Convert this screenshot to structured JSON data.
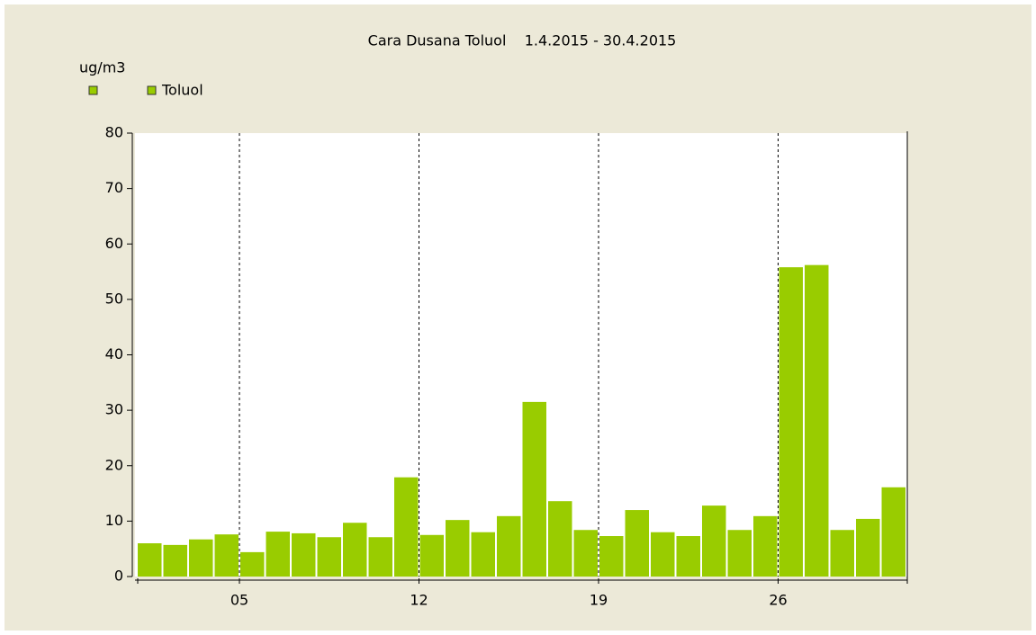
{
  "chart_data": {
    "type": "bar",
    "title": "Cara Dusana Toluol    1.4.2015 - 30.4.2015",
    "y_label": "ug/m3",
    "categories": [
      null,
      null,
      null,
      null,
      "05",
      null,
      null,
      null,
      null,
      null,
      null,
      "12",
      null,
      null,
      null,
      null,
      null,
      null,
      "19",
      null,
      null,
      null,
      null,
      null,
      null,
      "26",
      null,
      null,
      null,
      null
    ],
    "series": [
      {
        "name": "Toluol",
        "color": "#99cc00",
        "values": [
          6.0,
          5.7,
          6.7,
          7.6,
          4.4,
          8.1,
          7.8,
          7.1,
          9.7,
          7.1,
          17.9,
          7.5,
          10.2,
          8.0,
          10.9,
          31.5,
          13.6,
          8.4,
          7.3,
          12.0,
          8.0,
          7.3,
          12.8,
          8.4,
          10.9,
          55.8,
          56.2,
          8.4,
          10.4,
          16.1
        ]
      }
    ],
    "ylim": [
      0,
      80
    ],
    "yticks": [
      0,
      10,
      20,
      30,
      40,
      50,
      60,
      70,
      80
    ],
    "xgrid": true
  }
}
